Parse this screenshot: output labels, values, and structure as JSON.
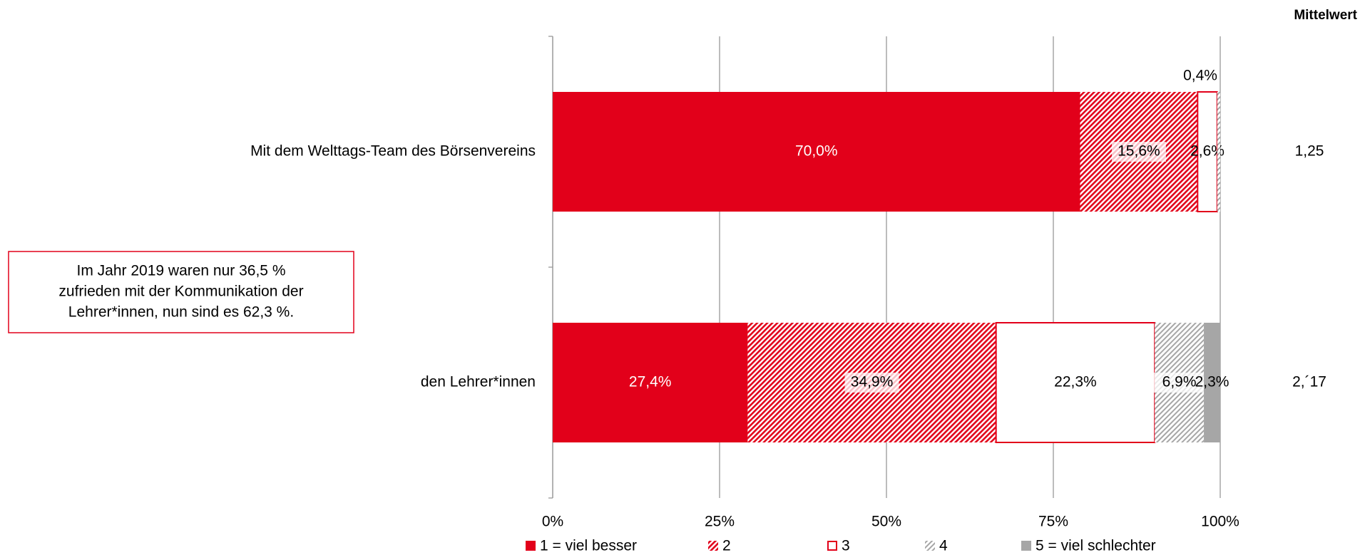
{
  "chart_data": {
    "type": "stacked_percent_barh",
    "categories": [
      "Mit dem Welttags-Team des Börsenvereins",
      "den Lehrer*innen"
    ],
    "series": [
      {
        "name": "1 = viel besser",
        "color": "#e2001a",
        "pattern": "solid",
        "values": [
          70.0,
          27.4
        ],
        "value_labels": [
          "70,0%",
          "27,4%"
        ]
      },
      {
        "name": "2",
        "color": "#e2001a",
        "pattern": "hatch",
        "values": [
          15.6,
          34.9
        ],
        "value_labels": [
          "15,6%",
          "34,9%"
        ]
      },
      {
        "name": "3",
        "color": "#ffffff",
        "edgecolor": "#e2001a",
        "pattern": "outline",
        "values": [
          2.6,
          22.3
        ],
        "value_labels": [
          "2,6%",
          "22,3%"
        ]
      },
      {
        "name": "4",
        "color": "#a6a6a6",
        "pattern": "hatch",
        "values": [
          0.4,
          6.9
        ],
        "value_labels": [
          "0,4%",
          "6,9%"
        ]
      },
      {
        "name": "5 = viel schlechter",
        "color": "#a6a6a6",
        "pattern": "solid",
        "values": [
          null,
          2.3
        ],
        "value_labels": [
          null,
          "2,3%"
        ]
      }
    ],
    "xlim": [
      0,
      100
    ],
    "xticks": [
      {
        "value": 0,
        "label": "0%"
      },
      {
        "value": 25,
        "label": "25%"
      },
      {
        "value": 50,
        "label": "50%"
      },
      {
        "value": 75,
        "label": "75%"
      },
      {
        "value": 100,
        "label": "100%"
      }
    ],
    "grid": true,
    "mean_header": "Mittelwert",
    "means": [
      "1,25",
      "2,´17"
    ],
    "annotation": [
      "Im Jahr 2019 waren nur 36,5 %",
      "zufrieden mit der Kommunikation der",
      "Lehrer*innen, nun sind es 62,3 %."
    ]
  }
}
